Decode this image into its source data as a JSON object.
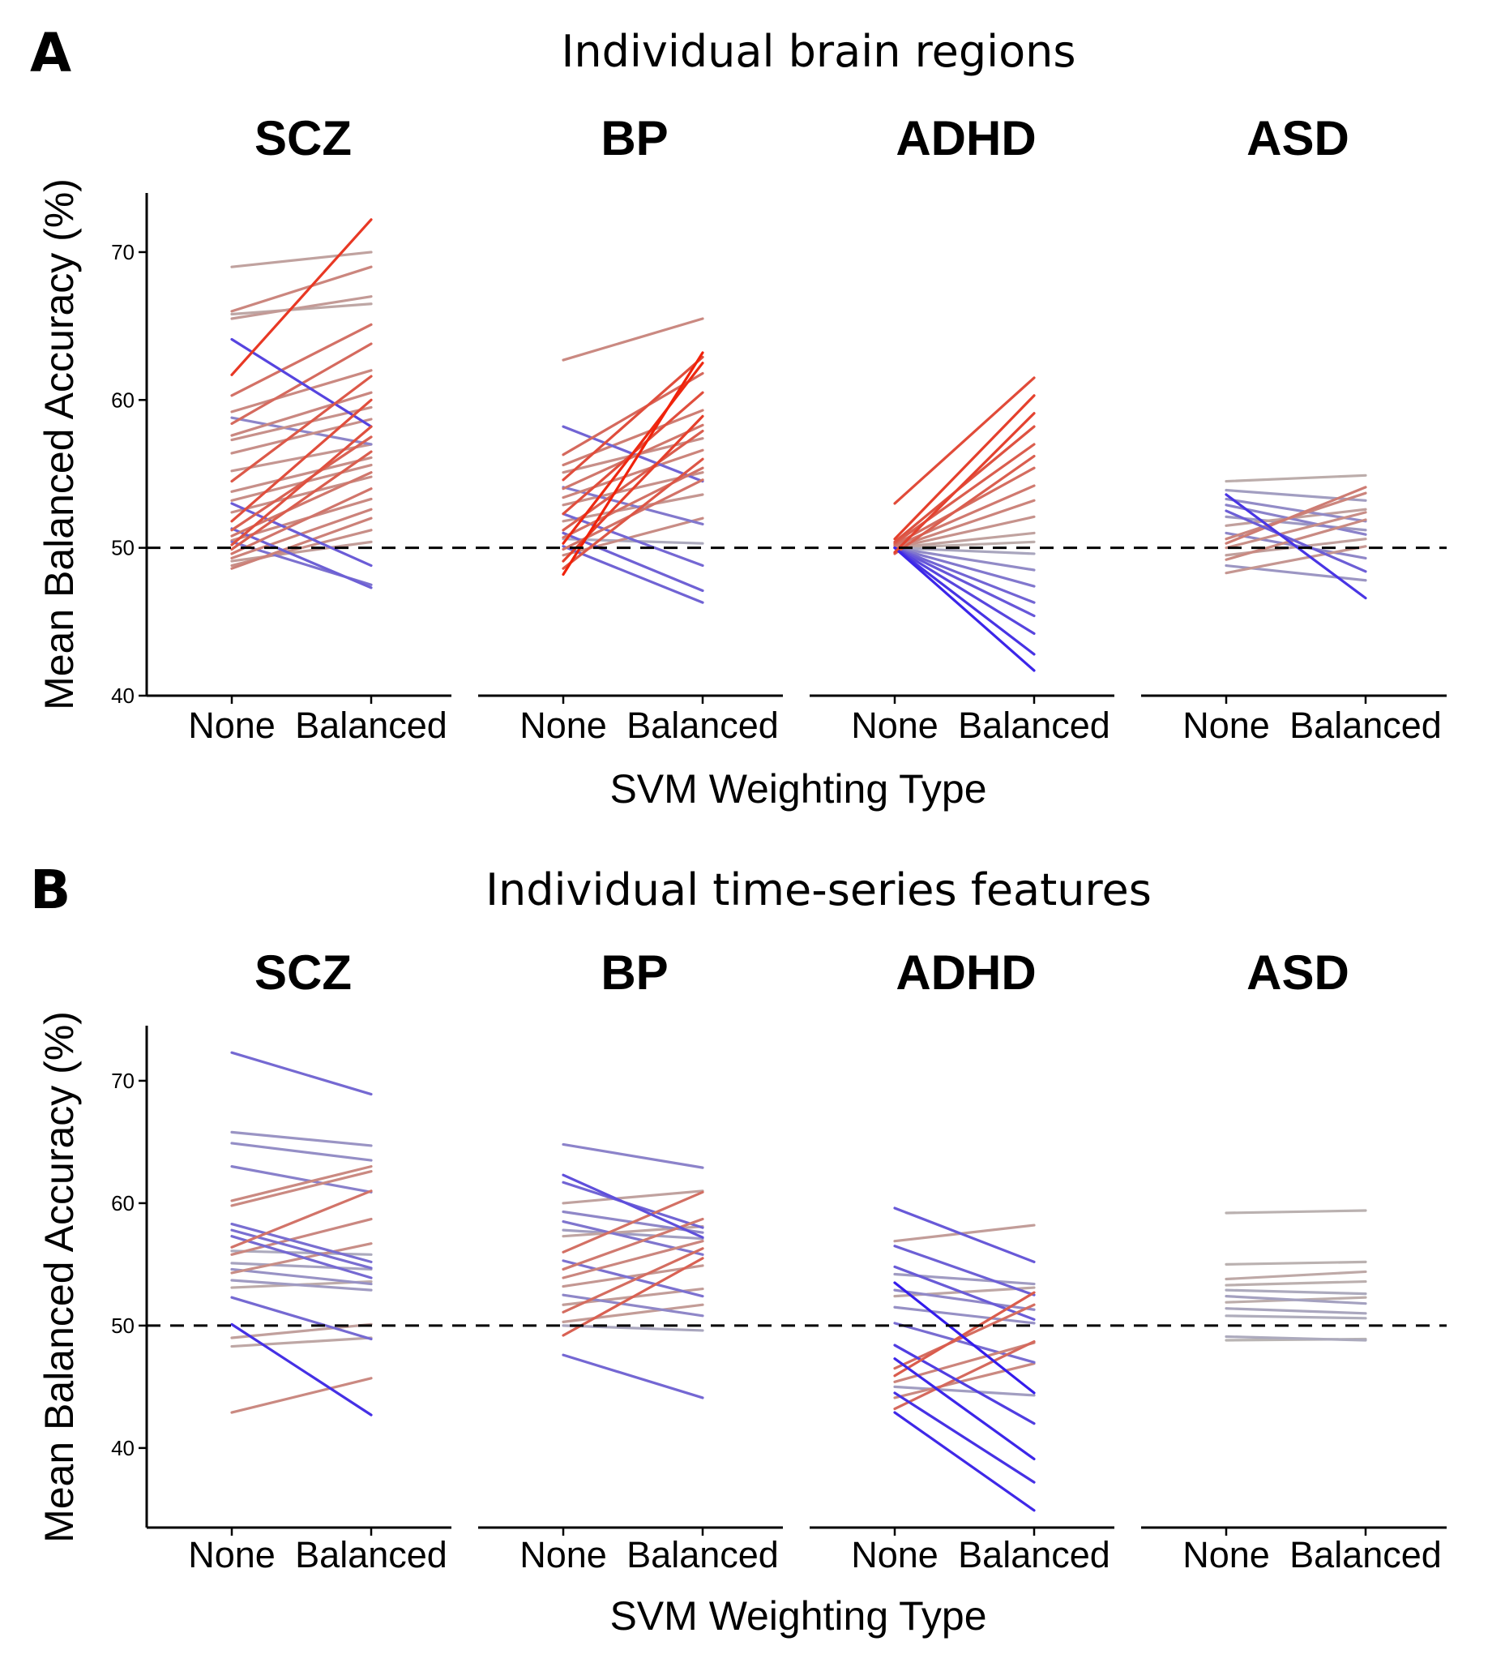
{
  "chart_data": [
    {
      "type": "line",
      "panel_letter": "A",
      "title": "Individual brain regions",
      "xlabel": "SVM Weighting Type",
      "ylabel": "Mean Balanced Accuracy (%)",
      "ylim": [
        40,
        74
      ],
      "yticks": [
        40,
        50,
        60,
        70
      ],
      "reference_line": 50,
      "x_categories": [
        "None",
        "Balanced"
      ],
      "facets": [
        {
          "label": "SCZ",
          "lines": [
            [
              69.0,
              70.0
            ],
            [
              65.8,
              66.5
            ],
            [
              65.5,
              67.0
            ],
            [
              64.1,
              58.2
            ],
            [
              61.7,
              72.2
            ],
            [
              60.3,
              65.1
            ],
            [
              59.2,
              62.0
            ],
            [
              58.4,
              63.8
            ],
            [
              57.6,
              60.5
            ],
            [
              57.3,
              59.5
            ],
            [
              56.4,
              58.7
            ],
            [
              55.2,
              57.0
            ],
            [
              54.5,
              61.6
            ],
            [
              53.8,
              56.1
            ],
            [
              53.2,
              55.6
            ],
            [
              52.4,
              54.8
            ],
            [
              51.8,
              60.0
            ],
            [
              51.2,
              57.5
            ],
            [
              50.8,
              55.1
            ],
            [
              50.5,
              53.3
            ],
            [
              50.2,
              58.2
            ],
            [
              49.9,
              56.5
            ],
            [
              49.6,
              54.0
            ],
            [
              49.3,
              52.6
            ],
            [
              49.1,
              50.4
            ],
            [
              48.8,
              51.2
            ],
            [
              48.6,
              52.0
            ],
            [
              50.4,
              47.5
            ],
            [
              51.3,
              47.3
            ],
            [
              53.0,
              48.8
            ],
            [
              58.8,
              57.0
            ],
            [
              66.0,
              69.0
            ]
          ]
        },
        {
          "label": "BP",
          "lines": [
            [
              62.7,
              65.5
            ],
            [
              58.2,
              54.5
            ],
            [
              56.3,
              61.8
            ],
            [
              55.6,
              59.3
            ],
            [
              55.1,
              57.4
            ],
            [
              54.6,
              62.9
            ],
            [
              54.0,
              58.3
            ],
            [
              53.4,
              56.6
            ],
            [
              52.9,
              55.1
            ],
            [
              52.3,
              60.5
            ],
            [
              51.8,
              53.6
            ],
            [
              51.2,
              57.9
            ],
            [
              50.7,
              55.4
            ],
            [
              50.3,
              62.5
            ],
            [
              49.9,
              54.6
            ],
            [
              49.5,
              52.0
            ],
            [
              49.1,
              58.9
            ],
            [
              48.6,
              56.0
            ],
            [
              48.2,
              63.2
            ],
            [
              50.1,
              46.3
            ],
            [
              51.0,
              47.1
            ],
            [
              52.3,
              48.8
            ],
            [
              54.1,
              51.6
            ],
            [
              50.6,
              50.3
            ]
          ]
        },
        {
          "label": "ADHD",
          "lines": [
            [
              53.0,
              61.5
            ],
            [
              50.6,
              60.3
            ],
            [
              50.4,
              58.2
            ],
            [
              50.3,
              57.0
            ],
            [
              50.2,
              55.4
            ],
            [
              50.1,
              54.2
            ],
            [
              50.0,
              53.2
            ],
            [
              50.0,
              52.1
            ],
            [
              50.0,
              51.0
            ],
            [
              50.0,
              50.4
            ],
            [
              50.0,
              49.6
            ],
            [
              50.0,
              48.5
            ],
            [
              50.0,
              47.4
            ],
            [
              50.0,
              46.3
            ],
            [
              50.0,
              45.4
            ],
            [
              50.0,
              44.2
            ],
            [
              50.0,
              42.8
            ],
            [
              50.0,
              41.7
            ],
            [
              49.7,
              59.1
            ],
            [
              49.6,
              56.2
            ]
          ]
        },
        {
          "label": "ASD",
          "lines": [
            [
              54.5,
              54.9
            ],
            [
              53.9,
              53.2
            ],
            [
              53.3,
              51.8
            ],
            [
              52.9,
              50.9
            ],
            [
              52.1,
              51.2
            ],
            [
              51.5,
              52.6
            ],
            [
              51.0,
              49.3
            ],
            [
              50.6,
              53.7
            ],
            [
              50.0,
              52.4
            ],
            [
              49.5,
              50.6
            ],
            [
              49.2,
              51.9
            ],
            [
              48.8,
              47.8
            ],
            [
              48.3,
              50.1
            ],
            [
              53.6,
              46.6
            ],
            [
              50.3,
              54.1
            ],
            [
              52.5,
              48.4
            ]
          ]
        }
      ]
    },
    {
      "type": "line",
      "panel_letter": "B",
      "title": "Individual time-series features",
      "xlabel": "SVM Weighting Type",
      "ylabel": "Mean Balanced Accuracy (%)",
      "ylim": [
        33.5,
        74.5
      ],
      "yticks": [
        40,
        50,
        60,
        70
      ],
      "reference_line": 50,
      "x_categories": [
        "None",
        "Balanced"
      ],
      "facets": [
        {
          "label": "SCZ",
          "lines": [
            [
              72.3,
              68.9
            ],
            [
              65.8,
              64.7
            ],
            [
              64.9,
              63.5
            ],
            [
              63.0,
              60.9
            ],
            [
              60.2,
              63.0
            ],
            [
              59.8,
              62.6
            ],
            [
              58.3,
              55.2
            ],
            [
              57.8,
              54.7
            ],
            [
              57.3,
              53.9
            ],
            [
              56.4,
              61.0
            ],
            [
              56.1,
              55.8
            ],
            [
              55.8,
              58.7
            ],
            [
              55.1,
              54.6
            ],
            [
              54.6,
              53.4
            ],
            [
              54.3,
              56.7
            ],
            [
              53.7,
              52.9
            ],
            [
              53.1,
              53.6
            ],
            [
              52.3,
              48.9
            ],
            [
              50.1,
              42.7
            ],
            [
              49.0,
              50.1
            ],
            [
              48.3,
              49.0
            ],
            [
              42.9,
              45.7
            ]
          ]
        },
        {
          "label": "BP",
          "lines": [
            [
              64.8,
              62.9
            ],
            [
              62.3,
              57.2
            ],
            [
              61.7,
              58.0
            ],
            [
              60.0,
              61.0
            ],
            [
              59.3,
              57.6
            ],
            [
              58.5,
              55.8
            ],
            [
              57.8,
              57.1
            ],
            [
              57.3,
              58.1
            ],
            [
              56.0,
              60.9
            ],
            [
              55.3,
              52.4
            ],
            [
              54.6,
              58.7
            ],
            [
              53.9,
              56.9
            ],
            [
              53.2,
              54.9
            ],
            [
              52.5,
              50.8
            ],
            [
              51.7,
              53.0
            ],
            [
              51.1,
              56.3
            ],
            [
              50.3,
              51.7
            ],
            [
              50.0,
              49.6
            ],
            [
              49.2,
              55.5
            ],
            [
              47.6,
              44.1
            ]
          ]
        },
        {
          "label": "ADHD",
          "lines": [
            [
              59.6,
              55.2
            ],
            [
              56.9,
              58.2
            ],
            [
              56.5,
              52.5
            ],
            [
              54.8,
              50.5
            ],
            [
              54.2,
              53.4
            ],
            [
              53.5,
              44.5
            ],
            [
              52.9,
              51.3
            ],
            [
              52.4,
              53.1
            ],
            [
              51.5,
              50.2
            ],
            [
              50.2,
              47.0
            ],
            [
              48.4,
              42.0
            ],
            [
              47.3,
              39.1
            ],
            [
              46.5,
              51.7
            ],
            [
              45.9,
              52.7
            ],
            [
              45.4,
              48.6
            ],
            [
              45.0,
              44.3
            ],
            [
              44.5,
              37.2
            ],
            [
              43.2,
              48.7
            ],
            [
              42.9,
              34.9
            ],
            [
              44.1,
              46.9
            ]
          ]
        },
        {
          "label": "ASD",
          "lines": [
            [
              59.2,
              59.4
            ],
            [
              55.0,
              55.2
            ],
            [
              53.8,
              54.4
            ],
            [
              53.3,
              53.6
            ],
            [
              52.9,
              52.6
            ],
            [
              52.4,
              51.8
            ],
            [
              51.9,
              52.3
            ],
            [
              51.4,
              51.0
            ],
            [
              50.8,
              50.6
            ],
            [
              49.1,
              48.8
            ],
            [
              48.8,
              48.9
            ]
          ]
        }
      ]
    }
  ]
}
